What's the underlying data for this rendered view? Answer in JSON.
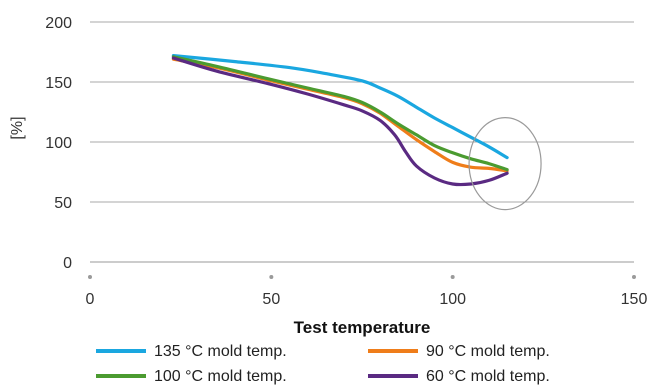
{
  "chart_data": {
    "type": "line",
    "xlabel": "Test temperature",
    "ylabel": "[%]",
    "xlim": [
      0,
      150
    ],
    "ylim": [
      0,
      200
    ],
    "xticks": [
      0,
      50,
      100,
      150
    ],
    "yticks": [
      0,
      50,
      100,
      150,
      200
    ],
    "grid": "horizontal",
    "legend_position": "bottom",
    "series": [
      {
        "name": "135 °C mold temp.",
        "color": "#1aa7e0",
        "x": [
          23,
          40,
          55,
          65,
          75,
          80,
          85,
          90,
          95,
          100,
          105,
          110,
          115
        ],
        "y": [
          172,
          167,
          162,
          157,
          151,
          145,
          138,
          129,
          120,
          112,
          104,
          96,
          87
        ]
      },
      {
        "name": "90 °C mold temp.",
        "color": "#ef7d1a",
        "x": [
          23,
          35,
          50,
          60,
          70,
          75,
          80,
          85,
          90,
          95,
          100,
          105,
          110,
          115
        ],
        "y": [
          169,
          162,
          151,
          144,
          137,
          132,
          124,
          113,
          102,
          92,
          83,
          79,
          78,
          76
        ]
      },
      {
        "name": "100 °C mold temp.",
        "color": "#4b9b30",
        "x": [
          23,
          35,
          50,
          60,
          70,
          75,
          80,
          85,
          90,
          95,
          100,
          105,
          110,
          115
        ],
        "y": [
          171,
          163,
          152,
          145,
          138,
          133,
          125,
          115,
          106,
          97,
          91,
          86,
          82,
          77
        ]
      },
      {
        "name": "60 °C mold temp.",
        "color": "#5a2a82",
        "x": [
          23,
          35,
          50,
          60,
          70,
          75,
          80,
          84,
          87,
          90,
          95,
          100,
          105,
          110,
          115
        ],
        "y": [
          170,
          159,
          148,
          140,
          131,
          126,
          118,
          106,
          92,
          80,
          70,
          65,
          65,
          68,
          74
        ]
      }
    ],
    "annotations": [
      {
        "type": "ellipse",
        "cx": 115,
        "cy": 82
      }
    ]
  }
}
